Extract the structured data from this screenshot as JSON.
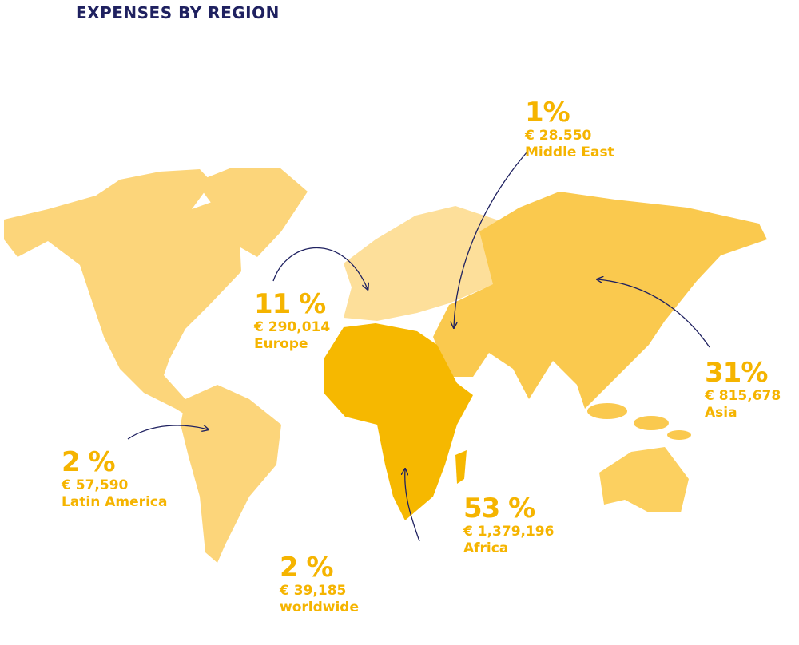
{
  "title": "EXPENSES BY REGION",
  "regions": [
    {
      "percent": "1%",
      "amount": "€ 28.550",
      "name": "Middle East"
    },
    {
      "percent": "11 %",
      "amount": "€ 290,014",
      "name": "Europe"
    },
    {
      "percent": "31%",
      "amount": "€ 815,678",
      "name": "Asia"
    },
    {
      "percent": "2 %",
      "amount": "€ 57,590",
      "name": "Latin America"
    },
    {
      "percent": "53 %",
      "amount": "€ 1,379,196",
      "name": "Africa"
    },
    {
      "percent": "2 %",
      "amount": "€ 39,185",
      "name": "worldwide"
    }
  ]
}
